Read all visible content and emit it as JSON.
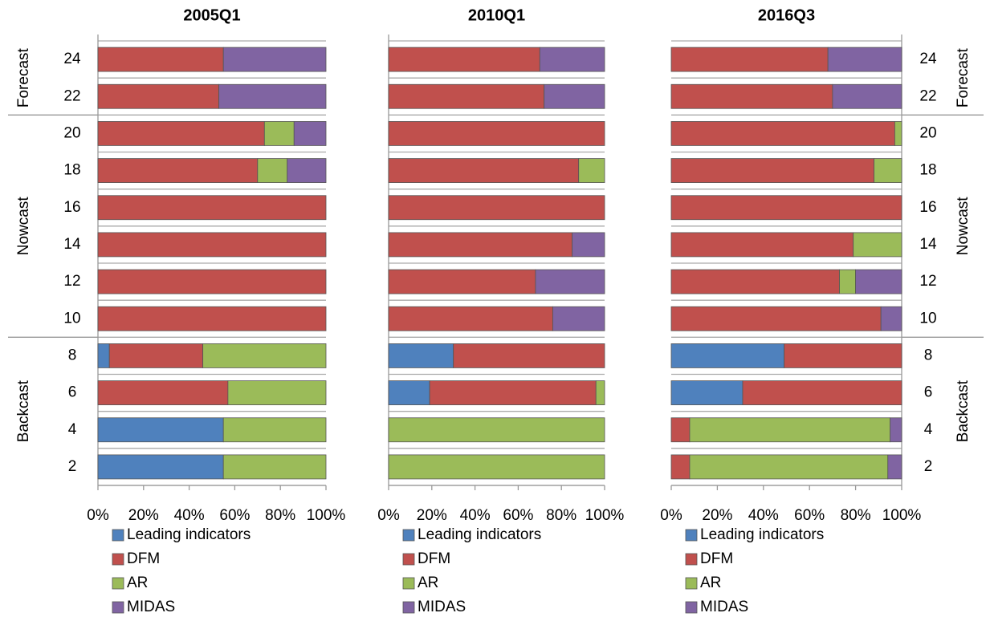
{
  "chart_data": [
    {
      "type": "bar",
      "orientation": "horizontal",
      "stacked": true,
      "title": "2005Q1",
      "category_axis": "left",
      "groups": [
        {
          "name": "Forecast",
          "categories": [
            "24",
            "22"
          ]
        },
        {
          "name": "Nowcast",
          "categories": [
            "20",
            "18",
            "16",
            "14",
            "12",
            "10"
          ]
        },
        {
          "name": "Backcast",
          "categories": [
            "8",
            "6",
            "4",
            "2"
          ]
        }
      ],
      "series": [
        {
          "name": "Leading indicators",
          "color": "#4f81bd",
          "values": [
            0,
            0,
            0,
            0,
            0,
            0,
            0,
            0,
            5,
            0,
            55,
            55
          ]
        },
        {
          "name": "DFM",
          "color": "#c0504d",
          "values": [
            55,
            53,
            73,
            70,
            100,
            100,
            100,
            100,
            41,
            57,
            0,
            0
          ]
        },
        {
          "name": "AR",
          "color": "#9bbb59",
          "values": [
            0,
            0,
            13,
            13,
            0,
            0,
            0,
            0,
            54,
            43,
            45,
            45
          ]
        },
        {
          "name": "MIDAS",
          "color": "#8064a2",
          "values": [
            45,
            47,
            14,
            17,
            0,
            0,
            0,
            0,
            0,
            0,
            0,
            0
          ]
        }
      ],
      "xlim": [
        0,
        100
      ],
      "xticks": [
        {
          "value": 0,
          "label": "0%"
        },
        {
          "value": 20,
          "label": "20%"
        },
        {
          "value": 40,
          "label": "40%"
        },
        {
          "value": 60,
          "label": "60%"
        },
        {
          "value": 80,
          "label": "80%"
        },
        {
          "value": 100,
          "label": "100%"
        }
      ]
    },
    {
      "type": "bar",
      "orientation": "horizontal",
      "stacked": true,
      "title": "2010Q1",
      "category_axis": "none",
      "series": [
        {
          "name": "Leading indicators",
          "color": "#4f81bd",
          "values": [
            0,
            0,
            0,
            0,
            0,
            0,
            0,
            0,
            30,
            19,
            0,
            0
          ]
        },
        {
          "name": "DFM",
          "color": "#c0504d",
          "values": [
            70,
            72,
            100,
            88,
            100,
            85,
            68,
            76,
            70,
            77,
            0,
            0
          ]
        },
        {
          "name": "AR",
          "color": "#9bbb59",
          "values": [
            0,
            0,
            0,
            12,
            0,
            0,
            0,
            0,
            0,
            4,
            100,
            100
          ]
        },
        {
          "name": "MIDAS",
          "color": "#8064a2",
          "values": [
            30,
            28,
            0,
            0,
            0,
            15,
            32,
            24,
            0,
            0,
            0,
            0
          ]
        }
      ],
      "xlim": [
        0,
        100
      ],
      "xticks": [
        {
          "value": 0,
          "label": "0%"
        },
        {
          "value": 20,
          "label": "20%"
        },
        {
          "value": 40,
          "label": "40%"
        },
        {
          "value": 60,
          "label": "60%"
        },
        {
          "value": 80,
          "label": "80%"
        },
        {
          "value": 100,
          "label": "100%"
        }
      ]
    },
    {
      "type": "bar",
      "orientation": "horizontal",
      "stacked": true,
      "title": "2016Q3",
      "category_axis": "right",
      "groups": [
        {
          "name": "Forecast",
          "categories": [
            "24",
            "22"
          ]
        },
        {
          "name": "Nowcast",
          "categories": [
            "20",
            "18",
            "16",
            "14",
            "12",
            "10"
          ]
        },
        {
          "name": "Backcast",
          "categories": [
            "8",
            "6",
            "4",
            "2"
          ]
        }
      ],
      "series": [
        {
          "name": "Leading indicators",
          "color": "#4f81bd",
          "values": [
            0,
            0,
            0,
            0,
            0,
            0,
            0,
            0,
            49,
            31,
            0,
            0
          ]
        },
        {
          "name": "DFM",
          "color": "#c0504d",
          "values": [
            68,
            70,
            97,
            88,
            100,
            79,
            73,
            91,
            51,
            69,
            8,
            8
          ]
        },
        {
          "name": "AR",
          "color": "#9bbb59",
          "values": [
            0,
            0,
            3,
            12,
            0,
            21,
            7,
            0,
            0,
            0,
            87,
            86
          ]
        },
        {
          "name": "MIDAS",
          "color": "#8064a2",
          "values": [
            32,
            30,
            0,
            0,
            0,
            0,
            20,
            9,
            0,
            0,
            5,
            6
          ]
        }
      ],
      "xlim": [
        0,
        100
      ],
      "xticks": [
        {
          "value": 0,
          "label": "0%"
        },
        {
          "value": 20,
          "label": "20%"
        },
        {
          "value": 40,
          "label": "40%"
        },
        {
          "value": 60,
          "label": "60%"
        },
        {
          "value": 80,
          "label": "80%"
        },
        {
          "value": 100,
          "label": "100%"
        }
      ]
    }
  ]
}
